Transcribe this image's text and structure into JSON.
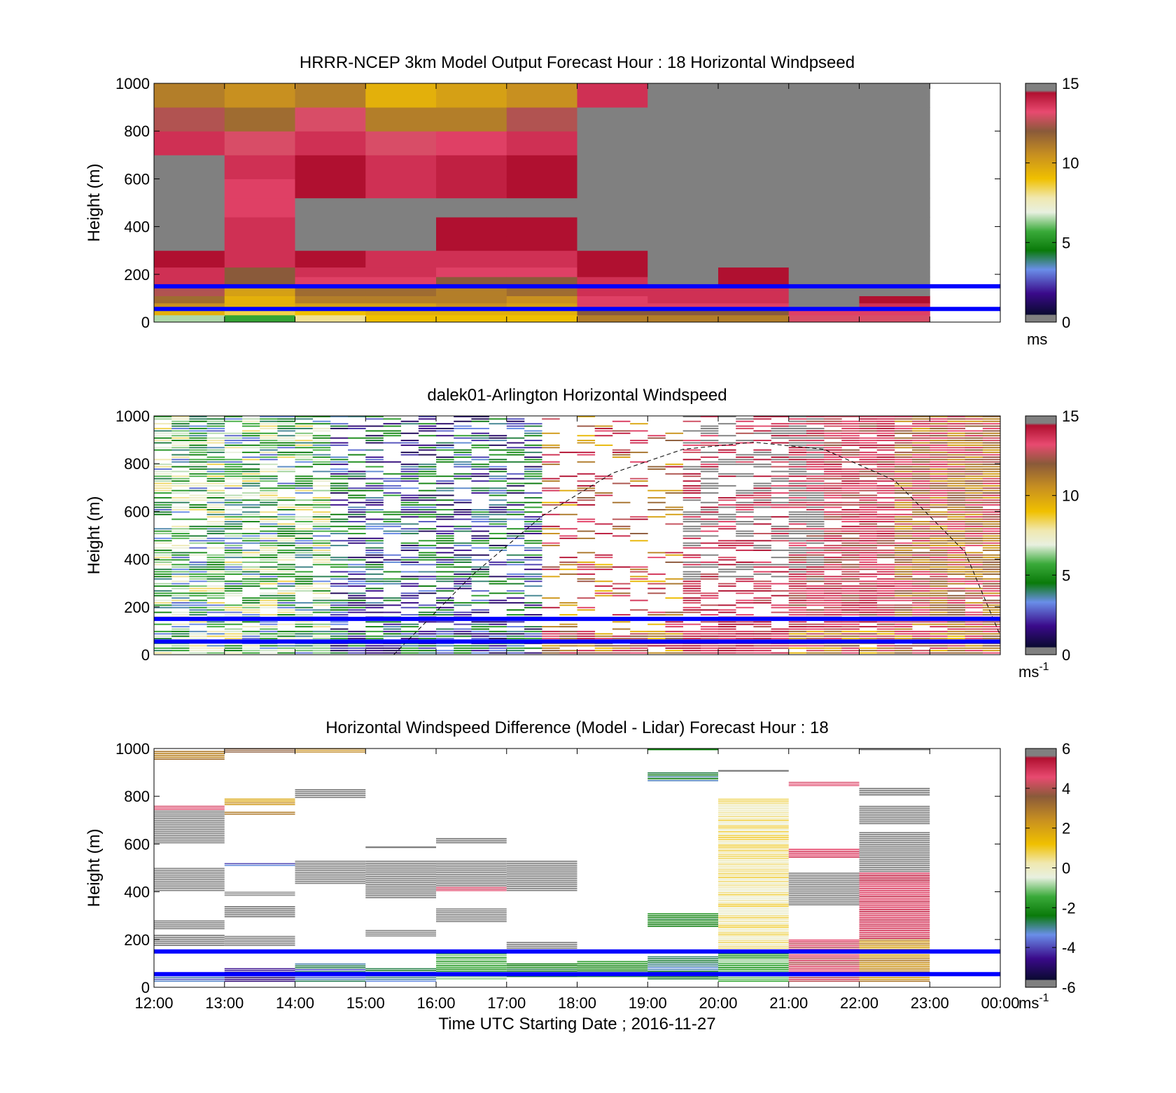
{
  "chart_data": [
    {
      "type": "heatmap",
      "title": "HRRR-NCEP 3km Model Output   Forecast Hour : 18 Horizontal Windpseed",
      "ylabel": "Height (m)",
      "xlabel": "",
      "ylim": [
        0,
        1000
      ],
      "yticks": [
        0,
        200,
        400,
        600,
        800,
        1000
      ],
      "xlim": [
        0,
        12
      ],
      "xticks": [
        0,
        1,
        2,
        3,
        4,
        5,
        6,
        7,
        8,
        9,
        10,
        11,
        12
      ],
      "xtick_labels": [],
      "colorbar": {
        "min": 0,
        "max": 15,
        "ticks": [
          "0",
          "5",
          "10",
          "15"
        ],
        "unit": "ms",
        "unit_sup": ""
      },
      "reference_lines_m": [
        150,
        55
      ],
      "levels_m": [
        0,
        30,
        55,
        80,
        110,
        150,
        190,
        230,
        300,
        360,
        440,
        520,
        600,
        700,
        800,
        900,
        1000
      ],
      "columns": [
        {
          "hour": 0,
          "speeds": [
            6.5,
            9.5,
            10.5,
            11.5,
            12.5,
            14,
            14,
            15,
            null,
            null,
            null,
            null,
            null,
            14,
            12.5,
            11,
            10
          ]
        },
        {
          "hour": 1,
          "speeds": [
            5.5,
            8.5,
            9.5,
            9.5,
            10,
            12,
            12,
            14,
            14,
            14,
            13.5,
            13.5,
            14,
            13,
            11.5,
            10.5,
            10
          ]
        },
        {
          "hour": 2,
          "speeds": [
            8,
            9,
            10,
            11,
            11.5,
            13.5,
            14,
            15,
            null,
            null,
            null,
            15,
            15,
            14,
            13,
            11,
            9.5
          ]
        },
        {
          "hour": 3,
          "speeds": [
            9,
            9.5,
            10,
            11,
            11.5,
            13.5,
            14,
            14,
            null,
            null,
            null,
            14,
            14,
            13,
            11,
            9.5,
            7.5
          ]
        },
        {
          "hour": 4,
          "speeds": [
            9,
            9.5,
            10.5,
            11,
            11,
            12,
            13.5,
            14,
            15,
            15,
            null,
            14.5,
            14.5,
            13.5,
            11,
            10,
            9.5
          ]
        },
        {
          "hour": 5,
          "speeds": [
            9,
            9.5,
            10,
            10.5,
            11.5,
            12,
            13.5,
            14,
            15,
            15,
            null,
            15,
            15,
            14,
            12.5,
            10.5,
            9.5
          ]
        },
        {
          "hour": 6,
          "speeds": [
            11,
            12,
            13.5,
            13.5,
            14,
            14,
            15,
            15,
            null,
            null,
            null,
            null,
            null,
            null,
            null,
            14,
            12
          ]
        },
        {
          "hour": 7,
          "speeds": [
            11,
            12,
            13.5,
            14,
            14,
            null,
            null,
            null,
            null,
            null,
            null,
            null,
            null,
            null,
            null,
            null,
            null
          ]
        },
        {
          "hour": 8,
          "speeds": [
            11,
            12,
            13.5,
            14,
            14,
            15,
            15,
            null,
            null,
            null,
            null,
            null,
            null,
            null,
            null,
            null,
            null
          ]
        },
        {
          "hour": 9,
          "speeds": [
            13,
            13.5,
            null,
            null,
            null,
            null,
            null,
            null,
            null,
            null,
            null,
            null,
            null,
            null,
            null,
            null,
            null
          ]
        },
        {
          "hour": 10,
          "speeds": [
            13,
            13.5,
            14,
            15,
            null,
            null,
            null,
            null,
            null,
            null,
            null,
            null,
            null,
            null,
            null,
            null,
            null
          ]
        }
      ],
      "nodata_hours": [
        [
          7,
          11
        ]
      ],
      "empty_hours": [
        [
          11,
          12
        ]
      ]
    },
    {
      "type": "heatmap",
      "title": "dalek01-Arlington  Horizontal Windspeed",
      "ylabel": "Height (m)",
      "xlabel": "",
      "ylim": [
        0,
        1000
      ],
      "yticks": [
        0,
        200,
        400,
        600,
        800,
        1000
      ],
      "xlim": [
        0,
        12
      ],
      "xticks": [
        0,
        1,
        2,
        3,
        4,
        5,
        6,
        7,
        8,
        9,
        10,
        11,
        12
      ],
      "xtick_labels": [],
      "colorbar": {
        "min": 0,
        "max": 15,
        "ticks": [
          "0",
          "5",
          "10",
          "15"
        ],
        "unit": "ms",
        "unit_sup": "-1"
      },
      "reference_lines_m": [
        150,
        55
      ],
      "boundary_layer_curve": {
        "x": [
          3.4,
          4.5,
          5.5,
          6.5,
          7.5,
          8.5,
          9.5,
          10.5,
          11.5,
          12
        ],
        "y": [
          0,
          330,
          580,
          760,
          860,
          890,
          860,
          730,
          430,
          80
        ]
      },
      "regimes": [
        {
          "from": 0,
          "to": 2.5,
          "center": 5.5,
          "spread": 3,
          "fill": 0.8
        },
        {
          "from": 2.5,
          "to": 5.5,
          "center": 3,
          "spread": 2.5,
          "fill": 0.55
        },
        {
          "from": 5.5,
          "to": 7.5,
          "center": 12,
          "spread": 3,
          "fill": 0.25
        },
        {
          "from": 7.5,
          "to": 9,
          "center": 14,
          "spread": 1.5,
          "fill": 0.55
        },
        {
          "from": 9,
          "to": 10.5,
          "center": 13.5,
          "spread": 1.5,
          "fill": 0.9
        },
        {
          "from": 10.5,
          "to": 12,
          "center": 12,
          "spread": 2,
          "fill": 0.95
        }
      ]
    },
    {
      "type": "heatmap",
      "title": "Horizontal Windspeed Difference (Model - Lidar) Forecast Hour : 18",
      "ylabel": "Height (m)",
      "xlabel": "Time UTC  Starting Date ; 2016-11-27",
      "ylim": [
        0,
        1000
      ],
      "yticks": [
        0,
        200,
        400,
        600,
        800,
        1000
      ],
      "xlim": [
        0,
        12
      ],
      "xticks": [
        0,
        1,
        2,
        3,
        4,
        5,
        6,
        7,
        8,
        9,
        10,
        11,
        12
      ],
      "xtick_labels": [
        "12:00",
        "13:00",
        "14:00",
        "15:00",
        "16:00",
        "17:00",
        "18:00",
        "19:00",
        "20:00",
        "21:00",
        "22:00",
        "23:00",
        "00:00"
      ],
      "colorbar": {
        "min": -6,
        "max": 6,
        "ticks": [
          "-6",
          "-4",
          "-2",
          "0",
          "2",
          "4",
          "6"
        ],
        "unit": "ms",
        "unit_sup": "-1"
      },
      "reference_lines_m": [
        150,
        55
      ],
      "bands": [
        {
          "hour": 0,
          "y0": 950,
          "y1": 990,
          "value": 2.5
        },
        {
          "hour": 0,
          "y0": 740,
          "y1": 760,
          "value": 5
        },
        {
          "hour": 0,
          "y0": 600,
          "y1": 740,
          "value": 6
        },
        {
          "hour": 0,
          "y0": 400,
          "y1": 500,
          "value": 6
        },
        {
          "hour": 0,
          "y0": 240,
          "y1": 280,
          "value": 6
        },
        {
          "hour": 0,
          "y0": 170,
          "y1": 220,
          "value": 6
        },
        {
          "hour": 0,
          "y0": 20,
          "y1": 60,
          "value": -4
        },
        {
          "hour": 1,
          "y0": 980,
          "y1": 1000,
          "value": 4
        },
        {
          "hour": 1,
          "y0": 760,
          "y1": 790,
          "value": 2
        },
        {
          "hour": 1,
          "y0": 720,
          "y1": 735,
          "value": 2.5
        },
        {
          "hour": 1,
          "y0": 505,
          "y1": 520,
          "value": -4
        },
        {
          "hour": 1,
          "y0": 380,
          "y1": 400,
          "value": 6
        },
        {
          "hour": 1,
          "y0": 290,
          "y1": 340,
          "value": 6
        },
        {
          "hour": 1,
          "y0": 170,
          "y1": 215,
          "value": 6
        },
        {
          "hour": 1,
          "y0": 20,
          "y1": 80,
          "value": -5
        },
        {
          "hour": 2,
          "y0": 980,
          "y1": 1000,
          "value": 2.5
        },
        {
          "hour": 2,
          "y0": 790,
          "y1": 830,
          "value": 6
        },
        {
          "hour": 2,
          "y0": 430,
          "y1": 530,
          "value": 6
        },
        {
          "hour": 2,
          "y0": 20,
          "y1": 100,
          "value": -3.5
        },
        {
          "hour": 3,
          "y0": 580,
          "y1": 590,
          "value": 6
        },
        {
          "hour": 3,
          "y0": 370,
          "y1": 530,
          "value": 6
        },
        {
          "hour": 3,
          "y0": 210,
          "y1": 240,
          "value": 6
        },
        {
          "hour": 3,
          "y0": 20,
          "y1": 80,
          "value": -3
        },
        {
          "hour": 4,
          "y0": 600,
          "y1": 625,
          "value": 6
        },
        {
          "hour": 4,
          "y0": 400,
          "y1": 420,
          "value": 5
        },
        {
          "hour": 4,
          "y0": 270,
          "y1": 330,
          "value": 6
        },
        {
          "hour": 4,
          "y0": 420,
          "y1": 530,
          "value": 6
        },
        {
          "hour": 4,
          "y0": 30,
          "y1": 150,
          "value": -1.5
        },
        {
          "hour": 5,
          "y0": 400,
          "y1": 530,
          "value": 6
        },
        {
          "hour": 5,
          "y0": 150,
          "y1": 190,
          "value": 6
        },
        {
          "hour": 5,
          "y0": 40,
          "y1": 100,
          "value": -2.5
        },
        {
          "hour": 6,
          "y0": 40,
          "y1": 110,
          "value": -2
        },
        {
          "hour": 7,
          "y0": 990,
          "y1": 1000,
          "value": -3
        },
        {
          "hour": 7,
          "y0": 860,
          "y1": 900,
          "value": -3
        },
        {
          "hour": 7,
          "y0": 250,
          "y1": 310,
          "value": -2.5
        },
        {
          "hour": 7,
          "y0": 30,
          "y1": 130,
          "value": -3
        },
        {
          "hour": 8,
          "y0": 900,
          "y1": 910,
          "value": 6
        },
        {
          "hour": 8,
          "y0": 150,
          "y1": 790,
          "value": 0.3
        },
        {
          "hour": 8,
          "y0": 20,
          "y1": 150,
          "value": -1.5
        },
        {
          "hour": 9,
          "y0": 840,
          "y1": 860,
          "value": 5
        },
        {
          "hour": 9,
          "y0": 540,
          "y1": 580,
          "value": 5
        },
        {
          "hour": 9,
          "y0": 340,
          "y1": 480,
          "value": 6
        },
        {
          "hour": 9,
          "y0": 20,
          "y1": 200,
          "value": 4.5
        },
        {
          "hour": 10,
          "y0": 990,
          "y1": 1000,
          "value": 6
        },
        {
          "hour": 10,
          "y0": 800,
          "y1": 835,
          "value": 6
        },
        {
          "hour": 10,
          "y0": 680,
          "y1": 760,
          "value": 6
        },
        {
          "hour": 10,
          "y0": 480,
          "y1": 650,
          "value": 6
        },
        {
          "hour": 10,
          "y0": 200,
          "y1": 480,
          "value": 5
        },
        {
          "hour": 10,
          "y0": 20,
          "y1": 200,
          "value": 2.5
        }
      ]
    }
  ]
}
